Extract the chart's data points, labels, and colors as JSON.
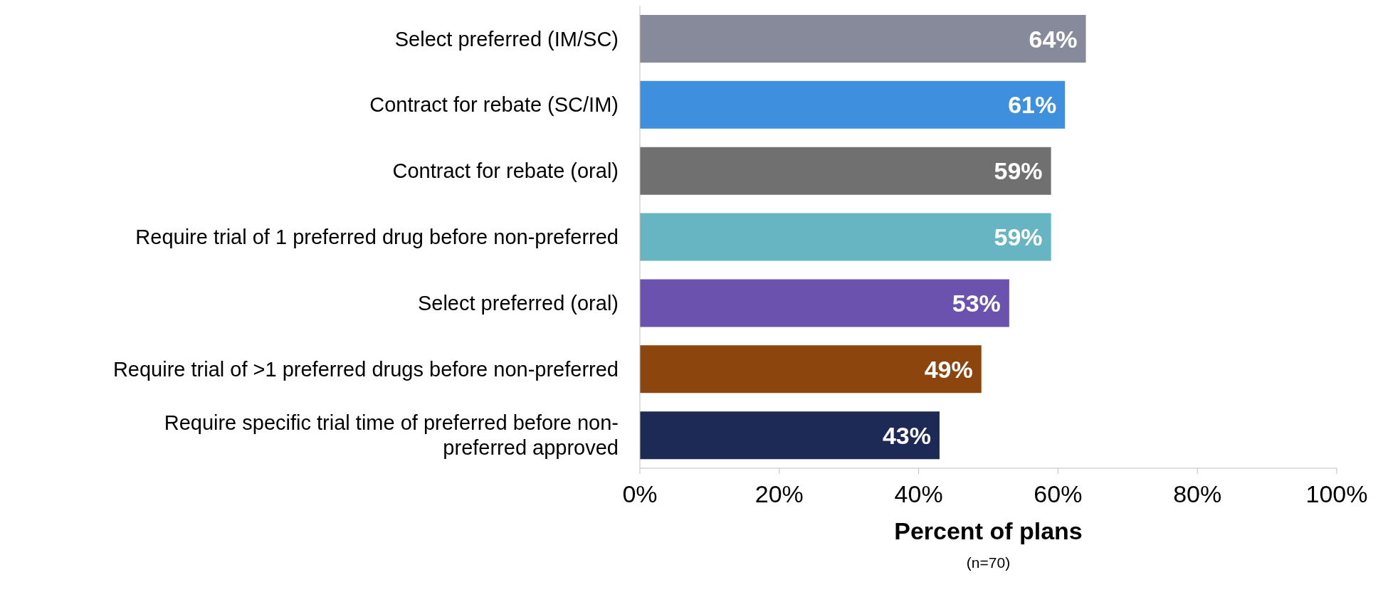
{
  "chart_data": {
    "type": "bar",
    "orientation": "horizontal",
    "categories": [
      "Select preferred (IM/SC)",
      "Contract for rebate (SC/IM)",
      "Contract for rebate (oral)",
      "Require trial of 1 preferred drug before non-preferred",
      "Select preferred (oral)",
      "Require trial of >1 preferred drugs before non-preferred",
      "Require specific trial time of preferred before non-preferred approved"
    ],
    "values": [
      64,
      61,
      59,
      59,
      53,
      49,
      43
    ],
    "value_labels": [
      "64%",
      "61%",
      "59%",
      "59%",
      "53%",
      "49%",
      "43%"
    ],
    "colors": [
      "#878a9b",
      "#3f8fdf",
      "#707070",
      "#67b5c2",
      "#6a52ae",
      "#8b450d",
      "#1e2a56"
    ],
    "xlim": [
      0,
      100
    ],
    "xticks": [
      {
        "value": 0,
        "label": "0%"
      },
      {
        "value": 20,
        "label": "20%"
      },
      {
        "value": 40,
        "label": "40%"
      },
      {
        "value": 60,
        "label": "60%"
      },
      {
        "value": 80,
        "label": "80%"
      },
      {
        "value": 100,
        "label": "100%"
      }
    ],
    "xlabel": "Percent of plans",
    "annotations": [
      "(n=70)"
    ]
  }
}
